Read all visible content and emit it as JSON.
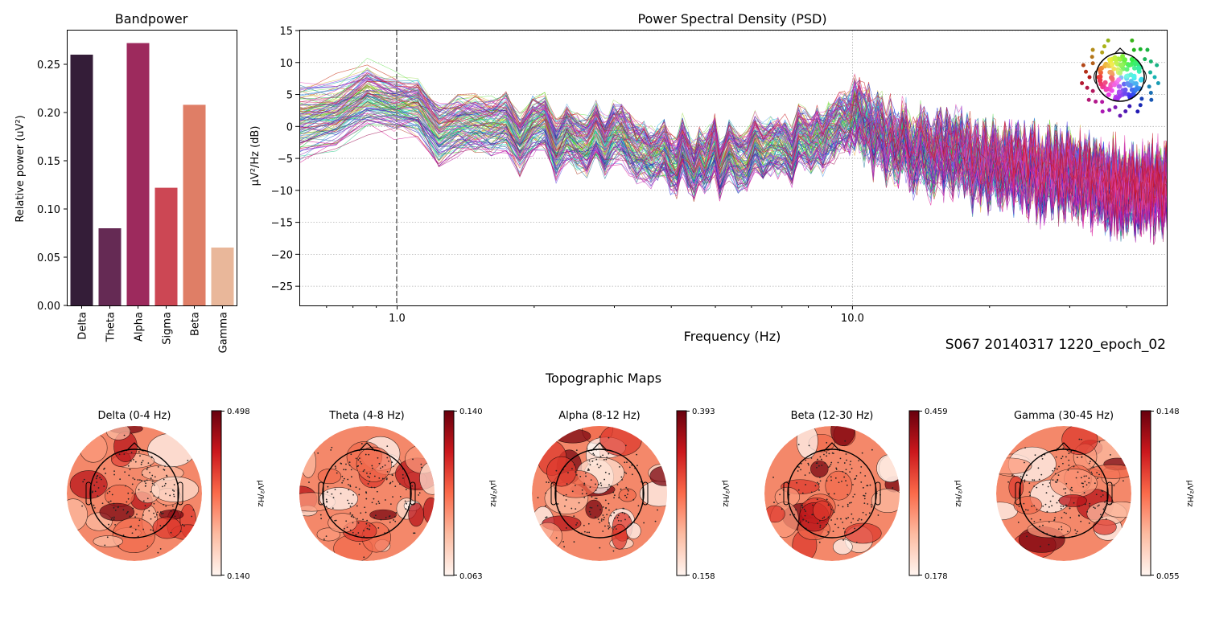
{
  "chart_data": [
    {
      "id": "bandpower",
      "type": "bar",
      "title": "Bandpower",
      "xlabel": "",
      "ylabel": "Relative power (uV²)",
      "categories": [
        "Delta",
        "Theta",
        "Alpha",
        "Sigma",
        "Beta",
        "Gamma"
      ],
      "values": [
        0.26,
        0.08,
        0.272,
        0.122,
        0.208,
        0.06
      ],
      "colors": [
        "#341d38",
        "#652a54",
        "#9d2a5d",
        "#cc4754",
        "#df7e66",
        "#e9b79a"
      ],
      "ylim": [
        0,
        0.285
      ],
      "yticks": [
        "0.00",
        "0.05",
        "0.10",
        "0.15",
        "0.20",
        "0.25"
      ],
      "grid": false
    },
    {
      "id": "psd",
      "type": "line",
      "title": "Power Spectral Density (PSD)",
      "xlabel": "Frequency (Hz)",
      "ylabel": "µV²/Hz (dB)",
      "xscale": "log",
      "xlim": [
        0.61,
        49.0
      ],
      "ylim": [
        -28,
        15
      ],
      "xticks": [
        "1.0",
        "10.0"
      ],
      "yticks": [
        "15",
        "10",
        "5",
        "0",
        "−5",
        "−10",
        "−15",
        "−20",
        "−25"
      ],
      "grid": true,
      "vline_x": 1.0,
      "n_channels": 120,
      "mean_spectrum": {
        "freq": [
          0.61,
          0.7,
          0.85,
          1.0,
          1.2,
          1.5,
          2.0,
          2.5,
          3.0,
          4.0,
          5.0,
          6.0,
          8.0,
          10.0,
          12.0,
          15.0,
          20.0,
          30.0,
          40.0,
          49.0
        ],
        "db": [
          1.5,
          2.5,
          4.0,
          2.0,
          0.5,
          0.0,
          -1.0,
          -2.5,
          -3.0,
          -4.5,
          -5.0,
          -4.5,
          -3.0,
          -0.5,
          -2.5,
          -4.5,
          -6.0,
          -8.0,
          -9.5,
          -10.0
        ]
      },
      "spread_db": 3.5,
      "annotation": "S067 20140317 1220_epoch_02",
      "legend": "sensor-position head inset, top-right"
    },
    {
      "id": "topomaps",
      "type": "heatmap",
      "title": "Topographic Maps",
      "colormap": "Reds",
      "colorbar_label": "µV²/Hz",
      "maps": [
        {
          "title": "Delta (0-4 Hz)",
          "vmin": "0.140",
          "vmax": "0.498"
        },
        {
          "title": "Theta (4-8 Hz)",
          "vmin": "0.063",
          "vmax": "0.140"
        },
        {
          "title": "Alpha (8-12 Hz)",
          "vmin": "0.158",
          "vmax": "0.393"
        },
        {
          "title": "Beta (12-30 Hz)",
          "vmin": "0.178",
          "vmax": "0.459"
        },
        {
          "title": "Gamma (30-45 Hz)",
          "vmin": "0.055",
          "vmax": "0.148"
        }
      ]
    }
  ]
}
